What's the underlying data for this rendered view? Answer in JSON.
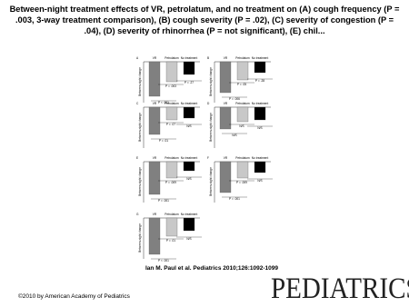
{
  "title": "Between-night treatment effects of VR, petrolatum, and no treatment on (A) cough frequency (P = .003, 3-way treatment comparison), (B) cough severity (P = .02), (C) severity of congestion (P = .04), (D) severity of rhinorrhea (P = not significant), (E) chil...",
  "figure": {
    "groups": [
      "VR",
      "Petrolatum",
      "No treatment"
    ],
    "y_label": "Between-night change",
    "panels": [
      {
        "letter": "A",
        "p": [
          "P = .003",
          "P = .27",
          "P < .001"
        ]
      },
      {
        "letter": "B",
        "p": [
          "P = .05",
          "P = .28",
          "P = .006"
        ]
      },
      {
        "letter": "C",
        "p": [
          "P = .07",
          "N/S",
          "P = .01"
        ]
      },
      {
        "letter": "D",
        "p": [
          "N/S",
          "N/S",
          "N/S"
        ]
      },
      {
        "letter": "E",
        "p": [
          "P = .009",
          "N/S",
          "P = .001"
        ]
      },
      {
        "letter": "F",
        "p": [
          "P = .009",
          "N/S",
          "P = .001"
        ]
      },
      {
        "letter": "G",
        "p": [
          "P = .01",
          "N/S",
          "P < .001"
        ]
      }
    ]
  },
  "citation": "Ian M. Paul et al. Pediatrics 2010;126:1092-1099",
  "copyright": "©2010 by American Academy of Pediatrics",
  "logo": "PEDIATRICS"
}
